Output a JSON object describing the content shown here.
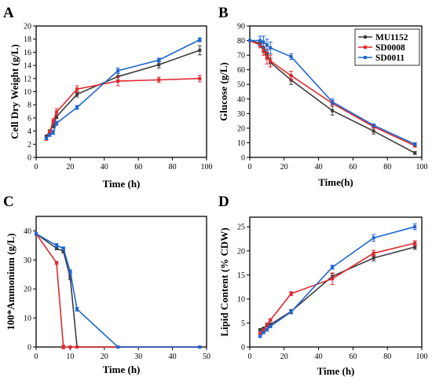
{
  "colors": {
    "MU1152": "#3d3d3d",
    "SD0008": "#e0282e",
    "SD0011": "#1f66d1"
  },
  "legend": {
    "placement": "top-right",
    "entries": [
      "MU1152",
      "SD0008",
      "SD0011"
    ]
  },
  "chart_data": [
    {
      "panel": "A",
      "type": "line",
      "xlabel": "Time (h)",
      "ylabel": "Cell Dry Weight (g/L)",
      "xlim": [
        0,
        100
      ],
      "ylim": [
        0,
        20
      ],
      "xticks": [
        "0",
        "20",
        "40",
        "60",
        "80",
        "100"
      ],
      "yticks": [
        "0",
        "2",
        "4",
        "6",
        "8",
        "10",
        "12",
        "14",
        "16",
        "18",
        "20"
      ],
      "series": [
        {
          "name": "MU1152",
          "x": [
            6,
            8,
            10,
            12,
            24,
            48,
            72,
            96
          ],
          "y": [
            3.2,
            4.0,
            4.8,
            6.2,
            9.6,
            12.3,
            14.1,
            16.3
          ],
          "err": [
            0.2,
            0.2,
            0.3,
            0.3,
            0.4,
            0.5,
            0.5,
            0.7
          ]
        },
        {
          "name": "SD0008",
          "x": [
            6,
            8,
            10,
            12,
            24,
            48,
            72,
            96
          ],
          "y": [
            2.8,
            3.8,
            5.5,
            6.9,
            10.4,
            11.6,
            11.8,
            12.0
          ],
          "err": [
            0.2,
            0.3,
            0.4,
            0.5,
            0.5,
            0.7,
            0.4,
            0.5
          ]
        },
        {
          "name": "SD0011",
          "x": [
            6,
            8,
            10,
            12,
            24,
            48,
            72,
            96
          ],
          "y": [
            2.9,
            3.4,
            3.8,
            5.2,
            7.6,
            13.2,
            14.8,
            17.9
          ],
          "err": [
            0.2,
            0.2,
            0.3,
            0.3,
            0.3,
            0.4,
            0.3,
            0.3
          ]
        }
      ]
    },
    {
      "panel": "B",
      "type": "line",
      "xlabel": "Time(h)",
      "ylabel": "Glucose (g/L)",
      "xlim": [
        0,
        100
      ],
      "ylim": [
        0,
        90
      ],
      "xticks": [
        "0",
        "20",
        "40",
        "60",
        "80",
        "100"
      ],
      "yticks": [
        "0",
        "10",
        "20",
        "30",
        "40",
        "50",
        "60",
        "70",
        "80",
        "90"
      ],
      "series": [
        {
          "name": "MU1152",
          "x": [
            0,
            6,
            8,
            10,
            12,
            24,
            48,
            72,
            96
          ],
          "y": [
            80,
            78,
            75,
            71,
            65,
            53,
            32,
            18,
            3
          ],
          "err": [
            0,
            2,
            3,
            3,
            3,
            3,
            3,
            2,
            1
          ]
        },
        {
          "name": "SD0008",
          "x": [
            0,
            6,
            8,
            10,
            12,
            24,
            48,
            72,
            96
          ],
          "y": [
            80,
            77,
            73,
            68,
            66,
            56,
            37,
            21,
            8
          ],
          "err": [
            0,
            2,
            3,
            4,
            4,
            3,
            2,
            1,
            1
          ]
        },
        {
          "name": "SD0011",
          "x": [
            0,
            6,
            8,
            10,
            12,
            24,
            48,
            72,
            96
          ],
          "y": [
            80,
            80,
            79,
            77,
            75,
            69,
            38,
            22,
            9
          ],
          "err": [
            0,
            3,
            4,
            4,
            4,
            2,
            2,
            1,
            1
          ]
        }
      ]
    },
    {
      "panel": "C",
      "type": "line",
      "xlabel": "Time (h)",
      "ylabel": "100*Ammonium (g/L)",
      "xlim": [
        0,
        50
      ],
      "ylim": [
        0,
        45
      ],
      "xticks": [
        "0",
        "10",
        "20",
        "30",
        "40",
        "50"
      ],
      "yticks": [
        "0",
        "10",
        "20",
        "30",
        "40"
      ],
      "series": [
        {
          "name": "MU1152",
          "x": [
            0,
            6,
            8,
            10,
            12,
            24,
            48
          ],
          "y": [
            39,
            34,
            33,
            24,
            0,
            0,
            0
          ],
          "err": [
            0,
            0.5,
            0.6,
            0.8,
            0,
            0,
            0
          ]
        },
        {
          "name": "SD0008",
          "x": [
            0,
            6,
            8,
            10,
            12,
            24,
            48
          ],
          "y": [
            39,
            29,
            0,
            0,
            0,
            0,
            0
          ],
          "err": [
            0,
            0.5,
            0.6,
            0,
            0,
            0,
            0
          ]
        },
        {
          "name": "SD0011",
          "x": [
            0,
            6,
            8,
            10,
            12,
            24,
            48
          ],
          "y": [
            39,
            35,
            34,
            26,
            13,
            0,
            0
          ],
          "err": [
            0,
            0.6,
            0.5,
            0.6,
            0.6,
            0,
            0
          ]
        }
      ]
    },
    {
      "panel": "D",
      "type": "line",
      "xlabel": "Time (h)",
      "ylabel": "Lipid Content (% CDW)",
      "xlim": [
        0,
        100
      ],
      "ylim": [
        0,
        27
      ],
      "xticks": [
        "0",
        "20",
        "40",
        "60",
        "80",
        "100"
      ],
      "yticks": [
        "0",
        "5",
        "10",
        "15",
        "20",
        "25"
      ],
      "series": [
        {
          "name": "MU1152",
          "x": [
            6,
            8,
            10,
            12,
            24,
            48,
            72,
            96
          ],
          "y": [
            3.6,
            3.9,
            4.4,
            4.7,
            7.4,
            14.7,
            18.5,
            20.8
          ],
          "err": [
            0.2,
            0.2,
            0.2,
            0.3,
            0.4,
            0.6,
            0.6,
            0.5
          ]
        },
        {
          "name": "SD0008",
          "x": [
            6,
            8,
            10,
            12,
            24,
            48,
            72,
            96
          ],
          "y": [
            2.9,
            3.5,
            4.7,
            5.6,
            11.1,
            14.2,
            19.5,
            21.6
          ],
          "err": [
            0.2,
            0.2,
            0.3,
            0.3,
            0.4,
            1.2,
            0.6,
            0.5
          ]
        },
        {
          "name": "SD0011",
          "x": [
            6,
            8,
            10,
            12,
            24,
            48,
            72,
            96
          ],
          "y": [
            2.2,
            3.0,
            3.6,
            4.3,
            7.3,
            16.6,
            22.7,
            25.0
          ],
          "err": [
            0.2,
            0.2,
            0.3,
            0.3,
            0.4,
            0.4,
            0.7,
            0.6
          ]
        }
      ]
    }
  ]
}
